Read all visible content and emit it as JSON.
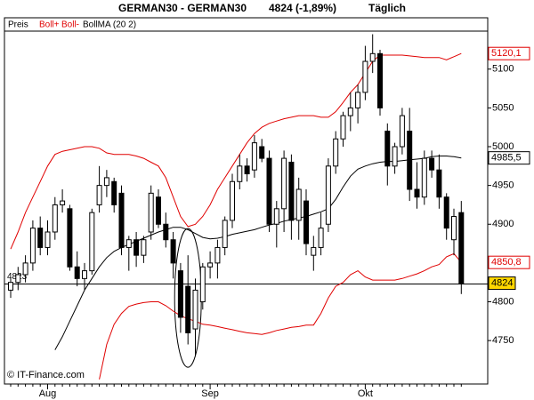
{
  "chart_data": {
    "type": "candlestick",
    "title": "GERMAN30 - GERMAN30",
    "price": "4824 (-1,89%)",
    "period": "Täglich",
    "copyright": "© IT-Finance.com",
    "categories": [
      null,
      null,
      null,
      null,
      null,
      "Aug",
      null,
      null,
      null,
      null,
      null,
      null,
      null,
      null,
      null,
      null,
      null,
      null,
      null,
      null,
      null,
      null,
      null,
      null,
      null,
      null,
      null,
      "Sep",
      null,
      null,
      null,
      null,
      null,
      null,
      null,
      null,
      null,
      null,
      null,
      null,
      null,
      null,
      null,
      null,
      null,
      null,
      null,
      null,
      "Okt",
      null,
      null,
      null,
      null,
      null,
      null,
      null,
      null,
      null,
      null,
      null,
      null,
      null
    ],
    "ohlc": {
      "name": "Preis",
      "open": [
        4815,
        4825,
        4835,
        4850,
        4895,
        4870,
        4890,
        4925,
        4920,
        4845,
        4830,
        4840,
        4925,
        4950,
        4955,
        4940,
        4870,
        4880,
        4860,
        4890,
        4935,
        4900,
        4880,
        4840,
        4820,
        4765,
        4800,
        4845,
        4850,
        4870,
        4905,
        4955,
        4975,
        4970,
        5000,
        4985,
        4900,
        4920,
        4980,
        4905,
        4930,
        4860,
        4870,
        4900,
        4975,
        5010,
        5040,
        5050,
        5070,
        5110,
        5120,
        5020,
        4975,
        5000,
        5020,
        4945,
        4935,
        4985,
        4970,
        4935,
        4880,
        4915
      ],
      "high": [
        4830,
        4845,
        4860,
        4905,
        4910,
        4905,
        4935,
        4945,
        4925,
        4865,
        4850,
        4920,
        4975,
        4970,
        4960,
        4950,
        4885,
        4890,
        4885,
        4950,
        4945,
        4915,
        4890,
        4850,
        4860,
        4830,
        4850,
        4865,
        4880,
        4910,
        4965,
        4990,
        4985,
        5015,
        5010,
        4995,
        4930,
        4995,
        4990,
        4960,
        4945,
        4885,
        4915,
        4985,
        5020,
        5045,
        5070,
        5080,
        5130,
        5145,
        5125,
        5030,
        5005,
        5050,
        5050,
        4980,
        4995,
        4995,
        4990,
        4940,
        4920,
        4930
      ],
      "low": [
        4805,
        4815,
        4825,
        4840,
        4860,
        4860,
        4880,
        4915,
        4840,
        4820,
        4815,
        4835,
        4915,
        4935,
        4915,
        4860,
        4840,
        4845,
        4850,
        4880,
        4895,
        4870,
        4830,
        4760,
        4745,
        4730,
        4790,
        4830,
        4830,
        4860,
        4895,
        4945,
        4955,
        4960,
        4980,
        4890,
        4870,
        4890,
        4880,
        4880,
        4860,
        4840,
        4860,
        4890,
        4965,
        5000,
        5020,
        5030,
        5060,
        5095,
        5040,
        4950,
        4965,
        4990,
        4930,
        4920,
        4925,
        4960,
        4920,
        4880,
        4860,
        4810
      ],
      "close": [
        4825,
        4835,
        4850,
        4895,
        4870,
        4890,
        4925,
        4930,
        4845,
        4830,
        4840,
        4915,
        4950,
        4960,
        4925,
        4870,
        4880,
        4860,
        4880,
        4940,
        4900,
        4880,
        4850,
        4780,
        4760,
        4815,
        4845,
        4850,
        4870,
        4905,
        4955,
        4975,
        4965,
        5005,
        4985,
        4900,
        4920,
        4985,
        4905,
        4945,
        4875,
        4870,
        4895,
        4975,
        5010,
        5040,
        5050,
        5070,
        5110,
        5120,
        5050,
        4975,
        5000,
        5040,
        4945,
        4935,
        4985,
        4970,
        4935,
        4895,
        4910,
        4824
      ]
    },
    "series": [
      {
        "name": "Boll+",
        "color": "#e00000",
        "last_label": "5120,1",
        "values": [
          4868,
          4890,
          4915,
          4935,
          4955,
          4975,
          4990,
          4994,
          4996,
          4998,
          5000,
          5000,
          4998,
          4992,
          4990,
          4990,
          4990,
          4988,
          4985,
          4980,
          4975,
          4960,
          4935,
          4910,
          4897,
          4900,
          4910,
          4925,
          4945,
          4960,
          4975,
          4990,
          5005,
          5017,
          5025,
          5030,
          5033,
          5036,
          5038,
          5040,
          5040,
          5040,
          5038,
          5038,
          5045,
          5057,
          5070,
          5080,
          5095,
          5110,
          5118,
          5118,
          5118,
          5118,
          5117,
          5116,
          5115,
          5115,
          5115,
          5112,
          5116,
          5120.1
        ]
      },
      {
        "name": "Boll-",
        "color": "#e00000",
        "last_label": "4850,8",
        "values": [
          null,
          null,
          null,
          null,
          null,
          null,
          null,
          null,
          null,
          null,
          null,
          null,
          4700,
          4745,
          4771,
          4785,
          4794,
          4797,
          4799,
          4800,
          4800,
          4795,
          4788,
          4782,
          4778,
          4775,
          4771,
          4770,
          4768,
          4766,
          4764,
          4762,
          4760,
          4759,
          4758,
          4760,
          4763,
          4765,
          4767,
          4768,
          4770,
          4770,
          4785,
          4805,
          4820,
          4825,
          4835,
          4840,
          4832,
          4828,
          4828,
          4828,
          4828,
          4830,
          4833,
          4836,
          4840,
          4845,
          4848,
          4858,
          4862,
          4850.8
        ]
      },
      {
        "name": "BollMA (20 2)",
        "color": "#000000",
        "last_label": "4985,5",
        "values": [
          null,
          null,
          null,
          null,
          null,
          null,
          4738,
          4755,
          4775,
          4795,
          4815,
          4830,
          4845,
          4857,
          4865,
          4870,
          4874,
          4878,
          4882,
          4886,
          4890,
          4893,
          4896,
          4896,
          4893,
          4888,
          4883,
          4881,
          4882,
          4884,
          4887,
          4889,
          4891,
          4893,
          4896,
          4899,
          4901,
          4904,
          4906,
          4908,
          4910,
          4913,
          4916,
          4920,
          4932,
          4948,
          4962,
          4971,
          4975,
          4978,
          4980,
          4981,
          4981,
          4982,
          4983,
          4984,
          4985,
          4987,
          4988,
          4988,
          4987,
          4985.5
        ]
      }
    ],
    "reference_line": {
      "value": 4823
    },
    "ylim": [
      4694,
      5149
    ],
    "yticks": [
      4750,
      4800,
      4850,
      4900,
      4950,
      5000,
      5050,
      5100
    ]
  }
}
